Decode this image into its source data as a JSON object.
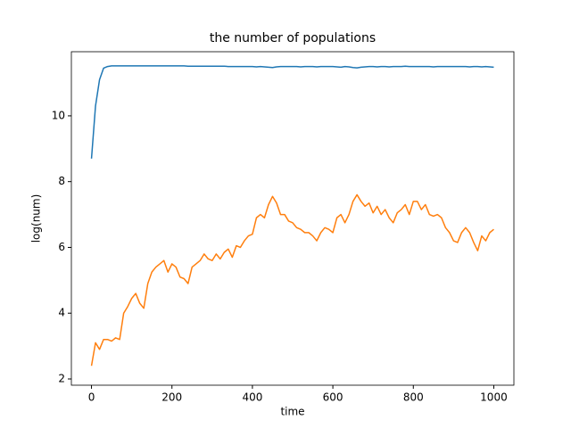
{
  "chart_data": {
    "type": "line",
    "title": "the number of populations",
    "x_label": "time",
    "y_label": "log(num)",
    "x": [
      0,
      10,
      20,
      30,
      40,
      50,
      60,
      70,
      80,
      90,
      100,
      110,
      120,
      130,
      140,
      150,
      160,
      170,
      180,
      190,
      200,
      210,
      220,
      230,
      240,
      250,
      260,
      270,
      280,
      290,
      300,
      310,
      320,
      330,
      340,
      350,
      360,
      370,
      380,
      390,
      400,
      410,
      420,
      430,
      440,
      450,
      460,
      470,
      480,
      490,
      500,
      510,
      520,
      530,
      540,
      550,
      560,
      570,
      580,
      590,
      600,
      610,
      620,
      630,
      640,
      650,
      660,
      670,
      680,
      690,
      700,
      710,
      720,
      730,
      740,
      750,
      760,
      770,
      780,
      790,
      800,
      810,
      820,
      830,
      840,
      850,
      860,
      870,
      880,
      890,
      900,
      910,
      920,
      930,
      940,
      950,
      960,
      970,
      980,
      990,
      1000
    ],
    "series": [
      {
        "color": "#1f77b4",
        "values": [
          8.7,
          10.3,
          11.1,
          11.45,
          11.5,
          11.52,
          11.52,
          11.52,
          11.52,
          11.52,
          11.52,
          11.52,
          11.52,
          11.52,
          11.52,
          11.52,
          11.52,
          11.52,
          11.52,
          11.52,
          11.52,
          11.52,
          11.52,
          11.52,
          11.51,
          11.51,
          11.51,
          11.51,
          11.51,
          11.51,
          11.51,
          11.51,
          11.51,
          11.51,
          11.5,
          11.5,
          11.5,
          11.5,
          11.5,
          11.5,
          11.5,
          11.49,
          11.5,
          11.49,
          11.48,
          11.47,
          11.49,
          11.5,
          11.5,
          11.5,
          11.5,
          11.5,
          11.49,
          11.5,
          11.5,
          11.5,
          11.49,
          11.5,
          11.5,
          11.5,
          11.5,
          11.49,
          11.48,
          11.5,
          11.49,
          11.47,
          11.46,
          11.48,
          11.49,
          11.5,
          11.5,
          11.49,
          11.5,
          11.5,
          11.49,
          11.5,
          11.5,
          11.5,
          11.51,
          11.5,
          11.5,
          11.5,
          11.5,
          11.5,
          11.5,
          11.49,
          11.5,
          11.5,
          11.5,
          11.5,
          11.5,
          11.5,
          11.5,
          11.5,
          11.49,
          11.5,
          11.5,
          11.49,
          11.5,
          11.49,
          11.48
        ]
      },
      {
        "color": "#ff7f0e",
        "values": [
          2.4,
          3.1,
          2.9,
          3.2,
          3.2,
          3.15,
          3.25,
          3.2,
          4.0,
          4.2,
          4.45,
          4.6,
          4.3,
          4.15,
          4.9,
          5.25,
          5.4,
          5.5,
          5.6,
          5.25,
          5.5,
          5.4,
          5.1,
          5.05,
          4.9,
          5.4,
          5.5,
          5.6,
          5.8,
          5.65,
          5.6,
          5.8,
          5.65,
          5.85,
          5.95,
          5.7,
          6.05,
          6.0,
          6.2,
          6.35,
          6.4,
          6.9,
          7.0,
          6.9,
          7.3,
          7.55,
          7.35,
          7.0,
          7.0,
          6.8,
          6.75,
          6.6,
          6.55,
          6.45,
          6.45,
          6.35,
          6.2,
          6.45,
          6.6,
          6.55,
          6.45,
          6.9,
          7.0,
          6.75,
          7.0,
          7.4,
          7.6,
          7.4,
          7.25,
          7.35,
          7.05,
          7.25,
          7.0,
          7.15,
          6.9,
          6.75,
          7.05,
          7.15,
          7.3,
          7.0,
          7.4,
          7.4,
          7.15,
          7.3,
          7.0,
          6.95,
          7.0,
          6.9,
          6.6,
          6.45,
          6.2,
          6.15,
          6.45,
          6.6,
          6.45,
          6.15,
          5.9,
          6.35,
          6.2,
          6.45,
          6.55
        ]
      }
    ],
    "xlim": [
      -50,
      1050
    ],
    "ylim": [
      1.81,
      11.95
    ],
    "xticks": [
      0,
      200,
      400,
      600,
      800,
      1000
    ],
    "yticks": [
      2,
      4,
      6,
      8,
      10
    ],
    "grid": false
  }
}
